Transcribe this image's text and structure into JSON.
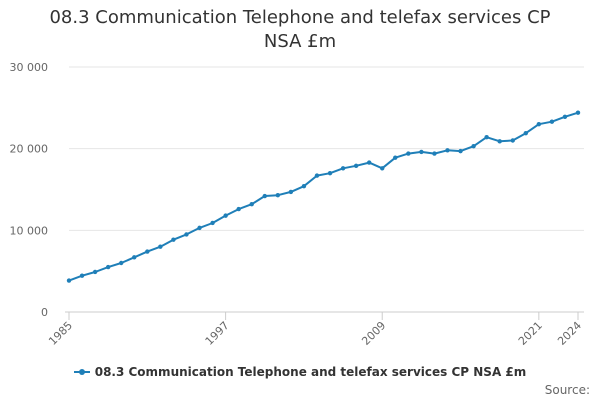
{
  "chart_data": {
    "type": "line",
    "title": "08.3 Communication Telephone and telefax services CP NSA £m",
    "xlabel": "",
    "ylabel": "",
    "ylim": [
      0,
      30000
    ],
    "yticks": [
      0,
      10000,
      20000,
      30000
    ],
    "ytick_labels": [
      "0",
      "10 000",
      "20 000",
      "30 000"
    ],
    "xticks": [
      1985,
      1997,
      2009,
      2021,
      2024
    ],
    "xlim": [
      1985,
      2024
    ],
    "grid": true,
    "legend_position": "bottom",
    "x": [
      1985,
      1986,
      1987,
      1988,
      1989,
      1990,
      1991,
      1992,
      1993,
      1994,
      1995,
      1996,
      1997,
      1998,
      1999,
      2000,
      2001,
      2002,
      2003,
      2004,
      2005,
      2006,
      2007,
      2008,
      2009,
      2010,
      2011,
      2012,
      2013,
      2014,
      2015,
      2016,
      2017,
      2018,
      2019,
      2020,
      2021,
      2022,
      2023,
      2024
    ],
    "series": [
      {
        "name": "08.3 Communication Telephone and telefax services CP NSA £m",
        "color": "#1f7fb8",
        "values": [
          3850,
          4450,
          4900,
          5500,
          6000,
          6700,
          7400,
          8000,
          8850,
          9500,
          10300,
          10900,
          11800,
          12600,
          13200,
          14200,
          14300,
          14700,
          15400,
          16700,
          17000,
          17600,
          17900,
          18300,
          17600,
          18900,
          19400,
          19600,
          19400,
          19800,
          19700,
          20300,
          21400,
          20900,
          21000,
          21900,
          23000,
          23300,
          23900,
          24400
        ]
      }
    ]
  },
  "footer": {
    "source_label": "Source:"
  }
}
